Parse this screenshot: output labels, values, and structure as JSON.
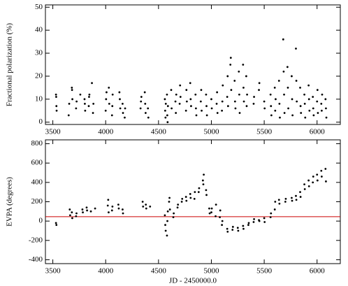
{
  "chart_data": [
    {
      "type": "scatter",
      "ylabel": "Fractional polarization (%)",
      "color": "#000000",
      "x": [
        3530,
        3532,
        3534,
        3536,
        3650,
        3655,
        3680,
        3682,
        3685,
        3720,
        3725,
        3760,
        3800,
        3803,
        3806,
        3840,
        3843,
        3846,
        3870,
        3880,
        3884,
        4000,
        4004,
        4008,
        4030,
        4034,
        4060,
        4063,
        4066,
        4130,
        4134,
        4138,
        4160,
        4164,
        4180,
        4184,
        4330,
        4334,
        4338,
        4370,
        4374,
        4378,
        4400,
        4404,
        4560,
        4563,
        4566,
        4569,
        4580,
        4583,
        4586,
        4589,
        4620,
        4624,
        4660,
        4664,
        4668,
        4700,
        4704,
        4708,
        4760,
        4764,
        4768,
        4800,
        4804,
        4808,
        4850,
        4854,
        4858,
        4900,
        4904,
        4908,
        4950,
        4954,
        4958,
        5000,
        5004,
        5050,
        5054,
        5058,
        5100,
        5104,
        5108,
        5150,
        5154,
        5158,
        5180,
        5184,
        5188,
        5220,
        5224,
        5228,
        5260,
        5264,
        5268,
        5300,
        5304,
        5308,
        5330,
        5334,
        5338,
        5400,
        5404,
        5450,
        5454,
        5500,
        5504,
        5560,
        5564,
        5568,
        5600,
        5604,
        5608,
        5640,
        5644,
        5648,
        5680,
        5684,
        5688,
        5692,
        5720,
        5724,
        5728,
        5760,
        5764,
        5768,
        5800,
        5804,
        5808,
        5840,
        5844,
        5848,
        5880,
        5884,
        5888,
        5920,
        5924,
        5928,
        5960,
        5964,
        5968,
        6000,
        6004,
        6008,
        6040,
        6044,
        6048,
        6080,
        6084,
        6088
      ],
      "values": [
        12,
        11,
        7,
        5,
        3,
        8,
        15,
        14,
        10,
        6,
        9,
        12,
        10,
        8,
        5,
        7,
        11,
        12,
        17,
        4,
        8,
        5,
        10,
        13,
        15,
        8,
        3,
        7,
        12,
        13,
        10,
        6,
        8,
        4,
        2,
        6,
        6,
        9,
        11,
        13,
        8,
        4,
        6,
        2,
        10,
        5,
        2,
        8,
        12,
        3,
        0,
        7,
        14,
        6,
        9,
        4,
        12,
        8,
        16,
        11,
        5,
        14,
        9,
        17,
        10,
        7,
        12,
        6,
        3,
        9,
        14,
        5,
        12,
        7,
        3,
        10,
        6,
        8,
        13,
        4,
        5,
        9,
        16,
        11,
        20,
        7,
        25,
        28,
        14,
        18,
        9,
        6,
        22,
        12,
        4,
        25,
        15,
        9,
        20,
        7,
        12,
        8,
        11,
        14,
        17,
        9,
        6,
        12,
        7,
        3,
        15,
        5,
        10,
        18,
        8,
        2,
        36,
        22,
        12,
        4,
        24,
        15,
        6,
        20,
        10,
        3,
        32,
        18,
        9,
        15,
        7,
        4,
        12,
        8,
        2,
        16,
        10,
        5,
        11,
        6,
        3,
        9,
        14,
        4,
        8,
        5,
        12,
        10,
        6,
        2
      ],
      "xlim": [
        3430,
        6220
      ],
      "ylim": [
        -1,
        51
      ],
      "xticks": [
        3500,
        4000,
        4500,
        5000,
        5500,
        6000
      ],
      "yticks": [
        0,
        10,
        20,
        30,
        40,
        50
      ]
    },
    {
      "type": "scatter",
      "ylabel": "EVPA (degrees)",
      "xlabel": "JD - 2450000.0",
      "color": "#000000",
      "x": [
        3530,
        3534,
        3660,
        3664,
        3680,
        3684,
        3720,
        3724,
        3780,
        3784,
        3820,
        3824,
        3860,
        3900,
        4020,
        4024,
        4028,
        4060,
        4064,
        4120,
        4124,
        4160,
        4164,
        4350,
        4354,
        4380,
        4384,
        4420,
        4560,
        4564,
        4568,
        4580,
        4584,
        4588,
        4600,
        4604,
        4608,
        4640,
        4644,
        4680,
        4684,
        4720,
        4724,
        4760,
        4764,
        4800,
        4804,
        4840,
        4844,
        4880,
        4884,
        4920,
        4924,
        4928,
        4950,
        4954,
        4980,
        4984,
        5000,
        5004,
        5040,
        5044,
        5080,
        5084,
        5100,
        5104,
        5150,
        5154,
        5200,
        5204,
        5250,
        5254,
        5300,
        5304,
        5350,
        5354,
        5400,
        5404,
        5450,
        5454,
        5500,
        5504,
        5560,
        5564,
        5600,
        5604,
        5640,
        5644,
        5700,
        5704,
        5760,
        5764,
        5800,
        5804,
        5840,
        5844,
        5880,
        5884,
        5920,
        5924,
        5960,
        5964,
        6000,
        6004,
        6040,
        6044,
        6080,
        6084
      ],
      "values": [
        -20,
        -40,
        120,
        60,
        90,
        30,
        50,
        80,
        120,
        90,
        140,
        110,
        100,
        130,
        160,
        220,
        90,
        110,
        150,
        170,
        130,
        120,
        80,
        200,
        150,
        170,
        130,
        150,
        60,
        -40,
        -100,
        -150,
        0,
        100,
        200,
        240,
        120,
        40,
        80,
        140,
        170,
        200,
        230,
        250,
        210,
        280,
        240,
        230,
        300,
        300,
        340,
        420,
        380,
        480,
        320,
        270,
        130,
        80,
        90,
        130,
        50,
        170,
        40,
        110,
        -40,
        0,
        -80,
        -110,
        -90,
        -60,
        -70,
        -100,
        -50,
        -80,
        -40,
        -20,
        -10,
        20,
        10,
        0,
        30,
        -10,
        40,
        80,
        120,
        200,
        220,
        180,
        200,
        230,
        240,
        210,
        260,
        220,
        300,
        250,
        380,
        330,
        420,
        360,
        400,
        460,
        480,
        420,
        520,
        460,
        540,
        410
      ],
      "xlim": [
        3430,
        6220
      ],
      "ylim": [
        -440,
        840
      ],
      "xticks": [
        3500,
        4000,
        4500,
        5000,
        5500,
        6000
      ],
      "yticks": [
        -400,
        -200,
        0,
        200,
        400,
        600,
        800
      ],
      "hline": 45,
      "hline_color": "#cc0000"
    }
  ]
}
